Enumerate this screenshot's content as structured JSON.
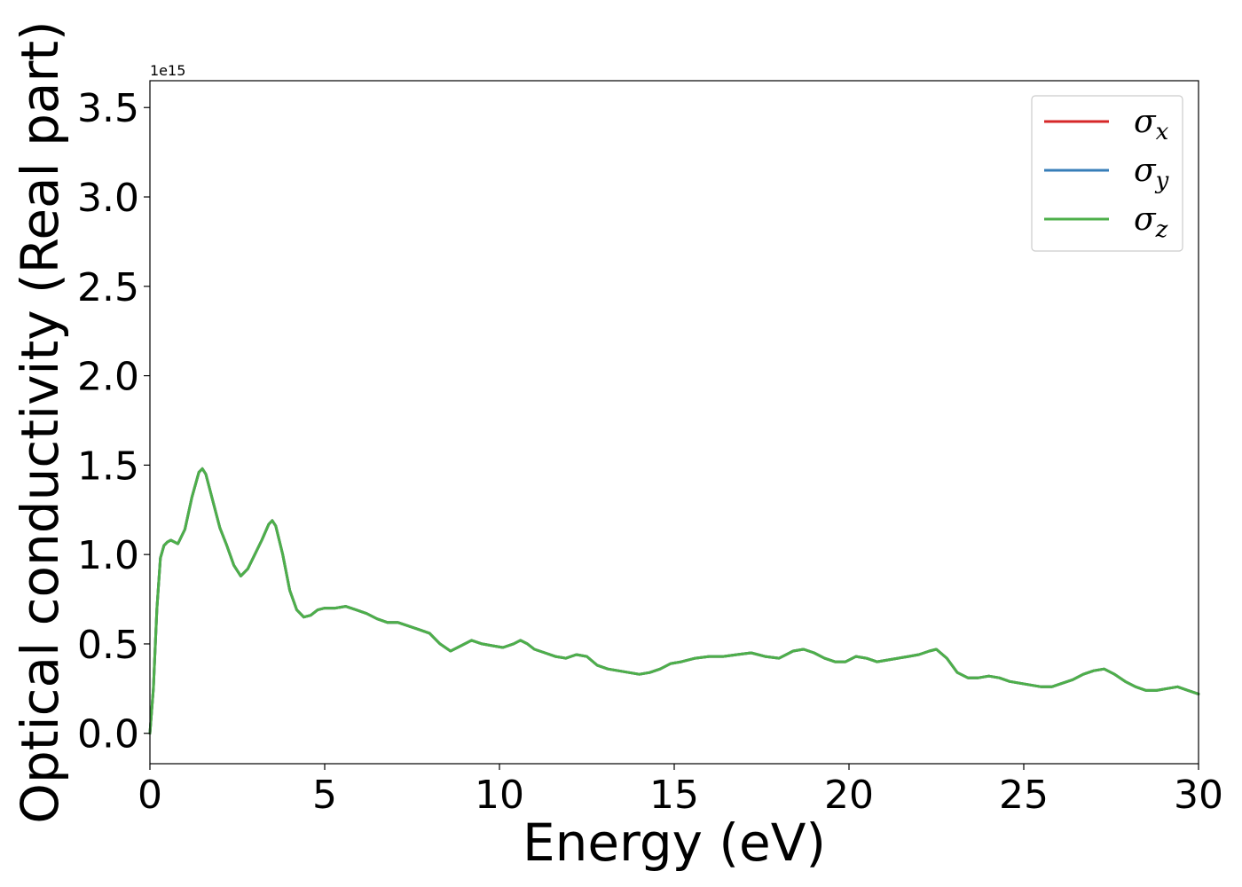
{
  "chart_data": {
    "type": "line",
    "xlabel": "Energy (eV)",
    "ylabel": "Optical conductivity (Real part)",
    "y_offset_text": "1e15",
    "y_multiplier": 1000000000000000.0,
    "xlim": [
      0,
      30
    ],
    "ylim": [
      -0.17,
      3.65
    ],
    "x_ticks": [
      0,
      5,
      10,
      15,
      20,
      25,
      30
    ],
    "x_tick_labels": [
      "0",
      "5",
      "10",
      "15",
      "20",
      "25",
      "30"
    ],
    "y_ticks": [
      0.0,
      0.5,
      1.0,
      1.5,
      2.0,
      2.5,
      3.0,
      3.5
    ],
    "y_tick_labels": [
      "0.0",
      "0.5",
      "1.0",
      "1.5",
      "2.0",
      "2.5",
      "3.0",
      "3.5"
    ],
    "grid": false,
    "legend_position": "top-right",
    "series": [
      {
        "name": "σx",
        "symbol": "σ",
        "sub": "x",
        "color": "#d62728"
      },
      {
        "name": "σy",
        "symbol": "σ",
        "sub": "y",
        "color": "#377eb8"
      },
      {
        "name": "σz",
        "symbol": "σ",
        "sub": "z",
        "color": "#4daf4a"
      }
    ],
    "x": [
      0,
      0.1,
      0.2,
      0.3,
      0.4,
      0.5,
      0.6,
      0.8,
      1.0,
      1.2,
      1.4,
      1.5,
      1.6,
      1.8,
      2.0,
      2.2,
      2.4,
      2.6,
      2.8,
      3.0,
      3.2,
      3.4,
      3.5,
      3.6,
      3.8,
      4.0,
      4.2,
      4.4,
      4.6,
      4.8,
      5.0,
      5.3,
      5.6,
      5.9,
      6.2,
      6.5,
      6.8,
      7.1,
      7.4,
      7.7,
      8.0,
      8.3,
      8.6,
      8.9,
      9.2,
      9.5,
      9.8,
      10.1,
      10.4,
      10.6,
      10.8,
      11.0,
      11.3,
      11.6,
      11.9,
      12.2,
      12.5,
      12.8,
      13.1,
      13.4,
      13.7,
      14.0,
      14.3,
      14.6,
      14.9,
      15.2,
      15.6,
      16.0,
      16.4,
      16.8,
      17.2,
      17.6,
      18.0,
      18.4,
      18.7,
      19.0,
      19.3,
      19.6,
      19.9,
      20.2,
      20.5,
      20.8,
      21.1,
      21.4,
      21.7,
      22.0,
      22.3,
      22.5,
      22.8,
      23.1,
      23.4,
      23.7,
      24.0,
      24.3,
      24.6,
      24.9,
      25.2,
      25.5,
      25.8,
      26.1,
      26.4,
      26.7,
      27.0,
      27.3,
      27.6,
      27.9,
      28.2,
      28.5,
      28.8,
      29.1,
      29.4,
      29.7,
      30.0
    ],
    "y": [
      0.0,
      0.25,
      0.7,
      0.98,
      1.05,
      1.07,
      1.08,
      1.06,
      1.14,
      1.32,
      1.46,
      1.48,
      1.45,
      1.3,
      1.15,
      1.05,
      0.94,
      0.88,
      0.92,
      1.0,
      1.08,
      1.17,
      1.19,
      1.16,
      1.0,
      0.8,
      0.69,
      0.65,
      0.66,
      0.69,
      0.7,
      0.7,
      0.71,
      0.69,
      0.67,
      0.64,
      0.62,
      0.62,
      0.6,
      0.58,
      0.56,
      0.5,
      0.46,
      0.49,
      0.52,
      0.5,
      0.49,
      0.48,
      0.5,
      0.52,
      0.5,
      0.47,
      0.45,
      0.43,
      0.42,
      0.44,
      0.43,
      0.38,
      0.36,
      0.35,
      0.34,
      0.33,
      0.34,
      0.36,
      0.39,
      0.4,
      0.42,
      0.43,
      0.43,
      0.44,
      0.45,
      0.43,
      0.42,
      0.46,
      0.47,
      0.45,
      0.42,
      0.4,
      0.4,
      0.43,
      0.42,
      0.4,
      0.41,
      0.42,
      0.43,
      0.44,
      0.46,
      0.47,
      0.42,
      0.34,
      0.31,
      0.31,
      0.32,
      0.31,
      0.29,
      0.28,
      0.27,
      0.26,
      0.26,
      0.28,
      0.3,
      0.33,
      0.35,
      0.36,
      0.33,
      0.29,
      0.26,
      0.24,
      0.24,
      0.25,
      0.26,
      0.24,
      0.22
    ]
  }
}
